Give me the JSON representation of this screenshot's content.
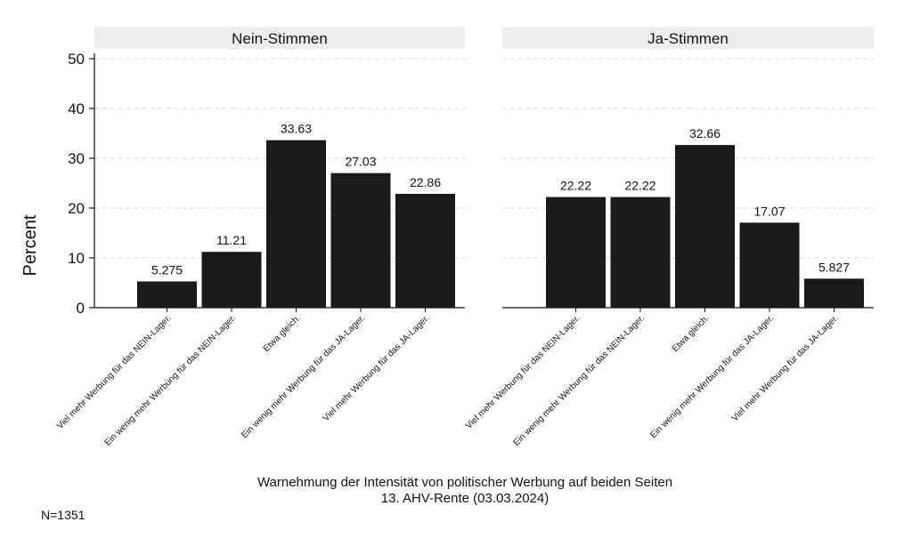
{
  "chart_data": {
    "type": "bar",
    "ylabel": "Percent",
    "ylim": [
      0,
      50
    ],
    "yticks": [
      0,
      10,
      20,
      30,
      40,
      50
    ],
    "grid": "horizontal-dashed",
    "categories": [
      "Viel mehr Werbung für das NEIN-Lager.",
      "Ein wenig mehr Werbung für das NEIN-Lager.",
      "Etwa gleich.",
      "Ein wenig mehr Werbung für das JA-Lager.",
      "Viel mehr Werbung für das JA-Lager."
    ],
    "panels": [
      {
        "name": "Nein-Stimmen",
        "values": [
          5.275,
          11.21,
          33.63,
          27.03,
          22.86
        ],
        "labels": [
          "5.275",
          "11.21",
          "33.63",
          "27.03",
          "22.86"
        ]
      },
      {
        "name": "Ja-Stimmen",
        "values": [
          22.22,
          22.22,
          32.66,
          17.07,
          5.827
        ],
        "labels": [
          "22.22",
          "22.22",
          "32.66",
          "17.07",
          "5.827"
        ]
      }
    ],
    "caption_line1": "Warnehmung der Intensität von politischer Werbung auf beiden Seiten",
    "caption_line2": "13. AHV-Rente (03.03.2024)",
    "note": "N=1351",
    "bar_color": "#1a1a1a",
    "strip_color": "#ededed"
  }
}
